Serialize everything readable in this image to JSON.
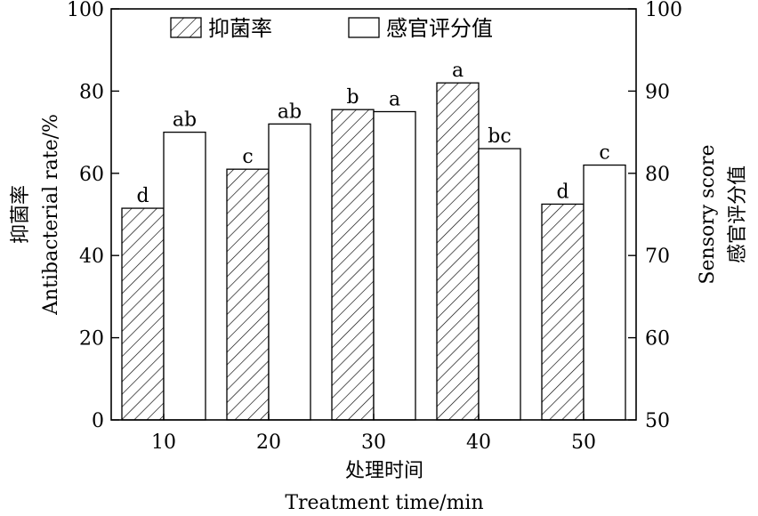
{
  "chart_data": {
    "type": "bar",
    "categories": [
      "10",
      "20",
      "30",
      "40",
      "50"
    ],
    "series": [
      {
        "name": "抑菌率",
        "axis": "left",
        "values": [
          51.5,
          61,
          75.5,
          82,
          52.5
        ],
        "labels": [
          "d",
          "c",
          "b",
          "a",
          "d"
        ],
        "fill": "hatched"
      },
      {
        "name": "感官评分值",
        "axis": "right",
        "values": [
          85,
          86,
          87.5,
          83,
          81
        ],
        "labels": [
          "ab",
          "ab",
          "a",
          "bc",
          "c"
        ],
        "fill": "white"
      }
    ],
    "xlabel_zh": "处理时间",
    "xlabel_en": "Treatment time/min",
    "ylabel_left_zh": "抑菌率",
    "ylabel_left_en": "Antibacterial rate/%",
    "ylabel_right_zh": "感官评分值",
    "ylabel_right_en": "Sensory score",
    "ylim_left": [
      0,
      100
    ],
    "yticks_left": [
      0,
      20,
      40,
      60,
      80,
      100
    ],
    "ylim_right": [
      50,
      100
    ],
    "yticks_right": [
      50,
      60,
      70,
      80,
      90,
      100
    ],
    "grid": false,
    "legend_position": "top"
  }
}
